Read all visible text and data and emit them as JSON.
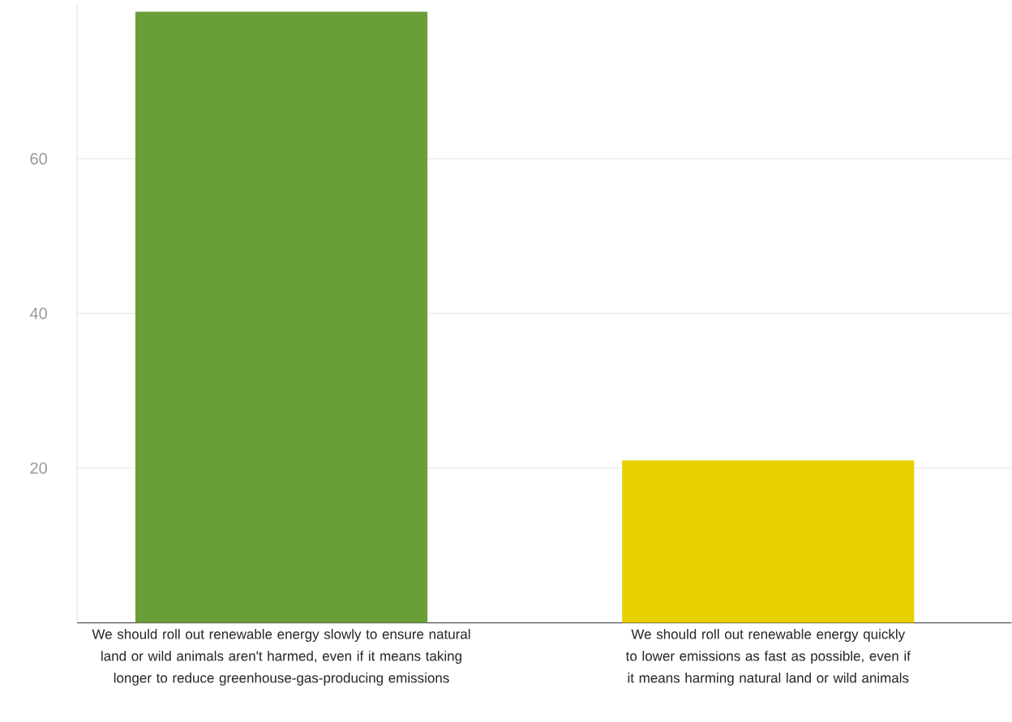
{
  "chart_data": {
    "type": "bar",
    "categories": [
      "We should roll out renewable energy slowly to ensure natural land or wild animals aren't harmed, even if it means taking longer to reduce greenhouse-gas-producing emissions",
      "We should roll out renewable energy quickly to lower emissions as fast as possible, even if it means harming natural land or wild animals"
    ],
    "values": [
      79,
      21
    ],
    "colors": [
      "#6a9e38",
      "#e8cf00"
    ],
    "ylim": [
      0,
      80
    ],
    "yticks": [
      20,
      40,
      60
    ],
    "grid": "y"
  }
}
